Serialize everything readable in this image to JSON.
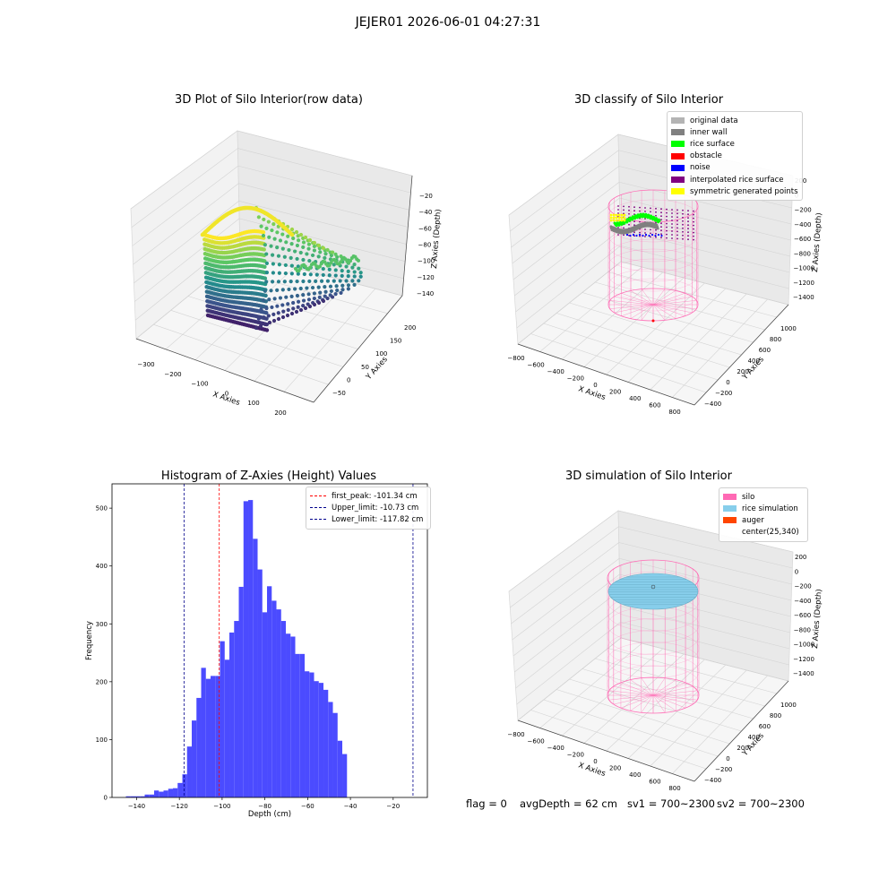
{
  "figure": {
    "suptitle": "JEJER01 2026-06-01 04:27:31"
  },
  "colors": {
    "original": "#b4b4b4",
    "wall": "#808080",
    "rice": "#00ff00",
    "obstacle": "#ff0000",
    "noise": "#0000ff",
    "interp": "#800080",
    "symmetric": "#ffff00",
    "silo": "#ff69b4",
    "rice_sim": "#87ceeb",
    "auger": "#ff4500",
    "hist": "#4b4bff"
  },
  "chart_data": [
    {
      "type": "scatter",
      "title": "3D Plot of Silo Interior(row data)",
      "xlabel": "X Axies",
      "ylabel": "Y Axies",
      "zlabel": "Z Axies (Depth)",
      "x_ticks": [
        "−300",
        "−200",
        "−100",
        "0",
        "100",
        "200"
      ],
      "y_ticks": [
        "−50",
        "0",
        "50",
        "100",
        "150",
        "200"
      ],
      "z_ticks": [
        "−20",
        "−40",
        "−60",
        "−80",
        "−100",
        "−120",
        "−140"
      ],
      "colormap": "viridis"
    },
    {
      "type": "scatter",
      "title": "3D classify of Silo Interior",
      "xlabel": "X Axies",
      "ylabel": "Y Axies",
      "zlabel": "Z Axies (Depth)",
      "x_ticks": [
        "−800",
        "−600",
        "−400",
        "−200",
        "0",
        "200",
        "400",
        "600",
        "800"
      ],
      "y_ticks": [
        "−400",
        "−200",
        "0",
        "200",
        "400",
        "600",
        "800",
        "1000"
      ],
      "z_ticks": [
        "200",
        "0",
        "−200",
        "−400",
        "−600",
        "−800",
        "−1000",
        "−1200",
        "−1400"
      ],
      "legend": [
        "original data",
        "inner wall",
        "rice surface",
        "obstacle",
        "noise",
        "interpolated rice surface",
        "symmetric generated points"
      ]
    },
    {
      "type": "bar",
      "title": "Histogram of Z-Axies (Height) Values",
      "xlabel": "Depth (cm)",
      "ylabel": "Frequency",
      "xlim": [
        -151.5,
        -4
      ],
      "ylim": [
        0,
        542
      ],
      "x_ticks": [
        -140,
        -120,
        -100,
        -80,
        -60,
        -40,
        -20
      ],
      "x_tick_labels": [
        "−140",
        "−120",
        "−100",
        "−80",
        "−60",
        "−40",
        "−20"
      ],
      "y_ticks": [
        0,
        100,
        200,
        300,
        400,
        500
      ],
      "bin_start": -145,
      "bin_width": 2.2,
      "values": [
        2,
        2,
        2,
        2,
        5,
        5,
        12,
        10,
        12,
        15,
        16,
        25,
        40,
        88,
        133,
        172,
        224,
        205,
        210,
        210,
        270,
        238,
        285,
        305,
        364,
        512,
        514,
        447,
        394,
        320,
        365,
        340,
        325,
        305,
        283,
        278,
        248,
        248,
        218,
        216,
        201,
        198,
        186,
        165,
        146,
        98,
        75
      ],
      "lines": [
        {
          "label": "first_peak: -101.34 cm",
          "x": -101.34,
          "color": "#ff0000"
        },
        {
          "label": "Upper_limit: -10.73 cm",
          "x": -10.73,
          "color": "#00008b"
        },
        {
          "label": "Lower_limit: -117.82 cm",
          "x": -117.82,
          "color": "#00008b"
        }
      ]
    },
    {
      "type": "scatter",
      "title": "3D simulation of Silo Interior",
      "xlabel": "X Axies",
      "ylabel": "Y Axies",
      "zlabel": "Z Axies (Depth)",
      "x_ticks": [
        "−800",
        "−600",
        "−400",
        "−200",
        "0",
        "200",
        "400",
        "600",
        "800"
      ],
      "y_ticks": [
        "−400",
        "−200",
        "0",
        "200",
        "400",
        "600",
        "800",
        "1000"
      ],
      "z_ticks": [
        "200",
        "0",
        "−200",
        "−400",
        "−600",
        "−800",
        "−1000",
        "−1200",
        "−1400"
      ],
      "legend": [
        "silo",
        "rice simulation",
        "auger",
        "center(25,340)"
      ]
    }
  ],
  "status": {
    "flag": "flag = 0",
    "avg": "avgDepth = 62 cm",
    "sv1": "sv1 = 700~2300",
    "sv2": "sv2 = 700~2300"
  }
}
